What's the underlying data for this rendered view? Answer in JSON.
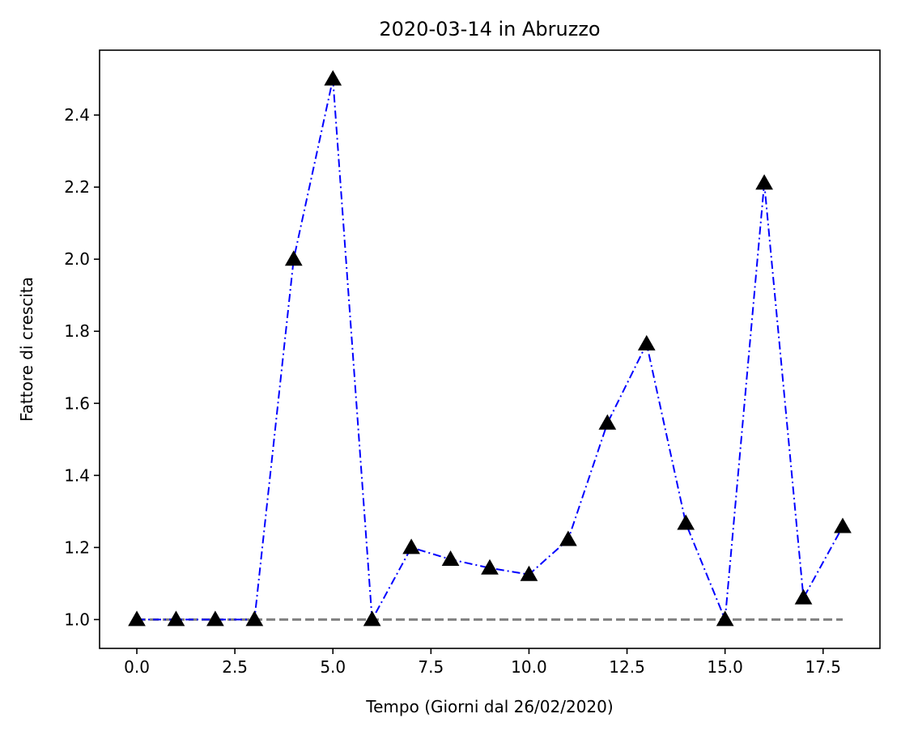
{
  "chart_data": {
    "type": "line",
    "title": "2020-03-14 in Abruzzo",
    "xlabel": "Tempo (Giorni dal 26/02/2020)",
    "ylabel": "Fattore di crescita",
    "xlim": [
      -0.95,
      18.95
    ],
    "ylim": [
      0.92,
      2.58
    ],
    "xticks": [
      0.0,
      2.5,
      5.0,
      7.5,
      10.0,
      12.5,
      15.0,
      17.5
    ],
    "xtick_labels": [
      "0.0",
      "2.5",
      "5.0",
      "7.5",
      "10.0",
      "12.5",
      "15.0",
      "17.5"
    ],
    "yticks": [
      1.0,
      1.2,
      1.4,
      1.6,
      1.8,
      2.0,
      2.2,
      2.4
    ],
    "ytick_labels": [
      "1.0",
      "1.2",
      "1.4",
      "1.6",
      "1.8",
      "2.0",
      "2.2",
      "2.4"
    ],
    "grid": false,
    "x": [
      0,
      1,
      2,
      3,
      4,
      5,
      6,
      7,
      8,
      9,
      10,
      11,
      12,
      13,
      14,
      15,
      16,
      17,
      18
    ],
    "series": [
      {
        "values": [
          1.0,
          1.0,
          1.0,
          1.0,
          2.0,
          2.5,
          1.0,
          1.2,
          1.167,
          1.143,
          1.125,
          1.222,
          1.545,
          1.765,
          1.267,
          1.0,
          2.211,
          1.06,
          1.258
        ],
        "color": "#0000ff",
        "line_style": "dash-dot",
        "marker": "triangle",
        "marker_color": "#000000"
      }
    ],
    "reference_line": {
      "x_range": [
        0,
        18
      ],
      "y": 1.0,
      "color": "#808080",
      "line_style": "dashed"
    }
  }
}
